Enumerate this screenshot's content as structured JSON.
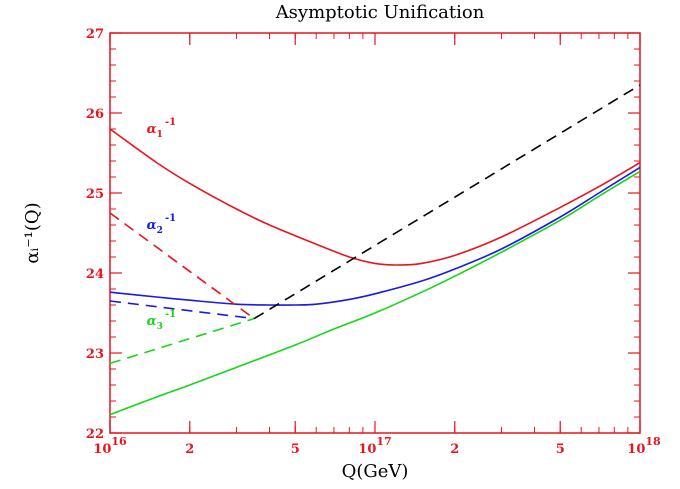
{
  "chart_data": {
    "type": "line",
    "title": "Asymptotic Unification",
    "xlabel": "Q(GeV)",
    "ylabel": "αᵢ⁻¹(Q)",
    "xscale": "log",
    "xlim": [
      1e+16,
      1e+18
    ],
    "ylim": [
      22,
      27
    ],
    "grid": false,
    "frame_color": "#e8141c",
    "x_ticks": [
      {
        "value": 1e+16,
        "base": "10",
        "exp": "16"
      },
      {
        "value": 2e+16,
        "base": "2",
        "exp": ""
      },
      {
        "value": 5e+16,
        "base": "5",
        "exp": ""
      },
      {
        "value": 1e+17,
        "base": "10",
        "exp": "17"
      },
      {
        "value": 2e+17,
        "base": "2",
        "exp": ""
      },
      {
        "value": 5e+17,
        "base": "5",
        "exp": ""
      },
      {
        "value": 1e+18,
        "base": "10",
        "exp": "18"
      }
    ],
    "y_ticks": [
      22,
      23,
      24,
      25,
      26,
      27
    ],
    "series_labels": [
      {
        "series": "alpha1",
        "base": "α",
        "sub": "1",
        "sup": "-1",
        "color": "#e8141c",
        "x": 1.5e+16,
        "y": 25.75
      },
      {
        "series": "alpha2",
        "base": "α",
        "sub": "2",
        "sup": "-1",
        "color": "#1a1ae0",
        "x": 1.5e+16,
        "y": 24.55
      },
      {
        "series": "alpha3",
        "base": "α",
        "sub": "3",
        "sup": "-1",
        "color": "#1ad41a",
        "x": 1.5e+16,
        "y": 23.35
      }
    ],
    "series": [
      {
        "id": "alpha1",
        "color": "#e8141c",
        "style": "solid",
        "x": [
          1e+16,
          1.5e+16,
          2e+16,
          3e+16,
          4e+16,
          6e+16,
          8e+16,
          1e+17,
          1.2e+17,
          1.5e+17,
          2e+17,
          3e+17,
          5e+17,
          7e+17,
          1e+18
        ],
        "y": [
          25.8,
          25.38,
          25.12,
          24.8,
          24.6,
          24.36,
          24.2,
          24.12,
          24.1,
          24.12,
          24.22,
          24.45,
          24.82,
          25.08,
          25.38
        ]
      },
      {
        "id": "alpha2",
        "color": "#1a1ae0",
        "style": "solid",
        "x": [
          1e+16,
          1.5e+16,
          2e+16,
          3e+16,
          4e+16,
          5e+16,
          6e+16,
          8e+16,
          1e+17,
          1.5e+17,
          2e+17,
          3e+17,
          5e+17,
          7e+17,
          1e+18
        ],
        "y": [
          23.76,
          23.7,
          23.66,
          23.61,
          23.6,
          23.6,
          23.61,
          23.67,
          23.74,
          23.9,
          24.05,
          24.3,
          24.7,
          25.0,
          25.32
        ]
      },
      {
        "id": "alpha3",
        "color": "#1ad41a",
        "style": "solid",
        "x": [
          1e+16,
          1.5e+16,
          2e+16,
          3e+16,
          5e+16,
          7e+16,
          1e+17,
          1.5e+17,
          2e+17,
          3e+17,
          5e+17,
          7e+17,
          1e+18
        ],
        "y": [
          22.23,
          22.45,
          22.6,
          22.82,
          23.1,
          23.3,
          23.5,
          23.76,
          23.96,
          24.26,
          24.66,
          24.96,
          25.27
        ]
      },
      {
        "id": "alpha1-dashed",
        "color": "#e8141c",
        "style": "dashed",
        "x": [
          1e+16,
          3.5e+16
        ],
        "y": [
          24.75,
          23.43
        ]
      },
      {
        "id": "alpha2-dashed",
        "color": "#1a1ae0",
        "style": "dashed",
        "x": [
          1e+16,
          3.5e+16
        ],
        "y": [
          23.65,
          23.43
        ]
      },
      {
        "id": "alpha3-dashed",
        "color": "#1ad41a",
        "style": "dashed",
        "x": [
          1e+16,
          3.5e+16
        ],
        "y": [
          22.87,
          23.43
        ]
      },
      {
        "id": "unified-dashed",
        "color": "#000000",
        "style": "dashed",
        "x": [
          3.5e+16,
          1e+18
        ],
        "y": [
          23.43,
          26.35
        ]
      }
    ]
  }
}
